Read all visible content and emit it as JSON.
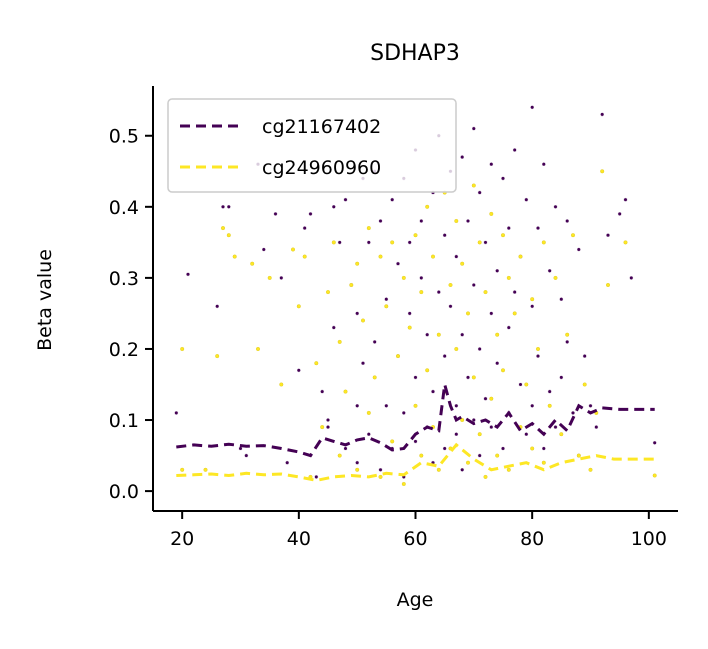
{
  "chart_data": {
    "type": "scatter",
    "title": "SDHAP3",
    "xlabel": "Age",
    "ylabel": "Beta value",
    "xlim": [
      15,
      105
    ],
    "ylim": [
      -0.028,
      0.57
    ],
    "xticks": [
      "20",
      "40",
      "60",
      "80",
      "100"
    ],
    "xtick_values": [
      20,
      40,
      60,
      80,
      100
    ],
    "yticks": [
      "0.0",
      "0.1",
      "0.2",
      "0.3",
      "0.4",
      "0.5"
    ],
    "ytick_values": [
      0.0,
      0.1,
      0.2,
      0.3,
      0.4,
      0.5
    ],
    "legend_position": "top-left",
    "grid": false,
    "series": [
      {
        "name": "cg21167402",
        "color": "#440154",
        "line_style": "dashed",
        "trend": {
          "x": [
            19,
            22,
            25,
            28,
            31,
            34,
            37,
            40,
            42,
            44,
            46,
            48,
            50,
            52,
            54,
            56,
            58,
            60,
            62,
            64,
            65,
            66,
            67,
            68,
            70,
            72,
            74,
            76,
            78,
            80,
            82,
            84,
            86,
            88,
            90,
            92,
            95,
            98,
            101
          ],
          "y": [
            0.062,
            0.065,
            0.063,
            0.066,
            0.063,
            0.064,
            0.06,
            0.055,
            0.05,
            0.075,
            0.07,
            0.065,
            0.072,
            0.075,
            0.068,
            0.058,
            0.06,
            0.08,
            0.09,
            0.085,
            0.15,
            0.12,
            0.1,
            0.105,
            0.095,
            0.1,
            0.09,
            0.11,
            0.085,
            0.095,
            0.08,
            0.1,
            0.085,
            0.12,
            0.11,
            0.117,
            0.115,
            0.115,
            0.115
          ]
        },
        "points": [
          [
            19,
            0.11
          ],
          [
            21,
            0.305
          ],
          [
            26,
            0.26
          ],
          [
            27,
            0.4
          ],
          [
            28,
            0.4
          ],
          [
            30,
            0.06
          ],
          [
            31,
            0.05
          ],
          [
            33,
            0.46
          ],
          [
            34,
            0.34
          ],
          [
            36,
            0.39
          ],
          [
            37,
            0.3
          ],
          [
            38,
            0.04
          ],
          [
            40,
            0.17
          ],
          [
            41,
            0.37
          ],
          [
            42,
            0.39
          ],
          [
            43,
            0.02
          ],
          [
            44,
            0.14
          ],
          [
            45,
            0.1
          ],
          [
            45,
            0.09
          ],
          [
            46,
            0.4
          ],
          [
            46,
            0.23
          ],
          [
            47,
            0.35
          ],
          [
            48,
            0.41
          ],
          [
            48,
            0.06
          ],
          [
            49,
            0.29
          ],
          [
            50,
            0.25
          ],
          [
            50,
            0.12
          ],
          [
            50,
            0.04
          ],
          [
            51,
            0.44
          ],
          [
            51,
            0.18
          ],
          [
            52,
            0.08
          ],
          [
            52,
            0.35
          ],
          [
            53,
            0.45
          ],
          [
            53,
            0.21
          ],
          [
            54,
            0.03
          ],
          [
            54,
            0.38
          ],
          [
            55,
            0.27
          ],
          [
            55,
            0.12
          ],
          [
            56,
            0.41
          ],
          [
            56,
            0.06
          ],
          [
            57,
            0.32
          ],
          [
            57,
            0.19
          ],
          [
            58,
            0.11
          ],
          [
            58,
            0.44
          ],
          [
            58,
            0.02
          ],
          [
            59,
            0.35
          ],
          [
            59,
            0.25
          ],
          [
            60,
            0.48
          ],
          [
            60,
            0.16
          ],
          [
            60,
            0.07
          ],
          [
            61,
            0.3
          ],
          [
            61,
            0.38
          ],
          [
            62,
            0.09
          ],
          [
            62,
            0.22
          ],
          [
            63,
            0.42
          ],
          [
            63,
            0.14
          ],
          [
            63,
            0.04
          ],
          [
            64,
            0.28
          ],
          [
            64,
            0.5
          ],
          [
            65,
            0.36
          ],
          [
            65,
            0.19
          ],
          [
            65,
            0.06
          ],
          [
            66,
            0.45
          ],
          [
            66,
            0.26
          ],
          [
            67,
            0.33
          ],
          [
            67,
            0.12
          ],
          [
            67,
            0.08
          ],
          [
            68,
            0.47
          ],
          [
            68,
            0.22
          ],
          [
            68,
            0.03
          ],
          [
            69,
            0.38
          ],
          [
            69,
            0.16
          ],
          [
            70,
            0.51
          ],
          [
            70,
            0.29
          ],
          [
            70,
            0.1
          ],
          [
            71,
            0.42
          ],
          [
            71,
            0.2
          ],
          [
            71,
            0.05
          ],
          [
            72,
            0.35
          ],
          [
            72,
            0.13
          ],
          [
            73,
            0.46
          ],
          [
            73,
            0.25
          ],
          [
            73,
            0.09
          ],
          [
            74,
            0.31
          ],
          [
            74,
            0.18
          ],
          [
            75,
            0.44
          ],
          [
            75,
            0.06
          ],
          [
            76,
            0.37
          ],
          [
            76,
            0.23
          ],
          [
            76,
            0.11
          ],
          [
            77,
            0.48
          ],
          [
            77,
            0.28
          ],
          [
            78,
            0.15
          ],
          [
            78,
            0.33
          ],
          [
            79,
            0.41
          ],
          [
            79,
            0.08
          ],
          [
            80,
            0.54
          ],
          [
            80,
            0.26
          ],
          [
            80,
            0.12
          ],
          [
            81,
            0.37
          ],
          [
            81,
            0.19
          ],
          [
            82,
            0.46
          ],
          [
            82,
            0.06
          ],
          [
            83,
            0.31
          ],
          [
            83,
            0.14
          ],
          [
            84,
            0.4
          ],
          [
            84,
            0.09
          ],
          [
            85,
            0.27
          ],
          [
            85,
            0.16
          ],
          [
            86,
            0.21
          ],
          [
            86,
            0.38
          ],
          [
            87,
            0.11
          ],
          [
            88,
            0.34
          ],
          [
            88,
            0.05
          ],
          [
            89,
            0.19
          ],
          [
            90,
            0.12
          ],
          [
            91,
            0.09
          ],
          [
            92,
            0.53
          ],
          [
            93,
            0.36
          ],
          [
            95,
            0.39
          ],
          [
            96,
            0.41
          ],
          [
            97,
            0.3
          ],
          [
            101,
            0.068
          ]
        ]
      },
      {
        "name": "cg24960960",
        "color": "#fde725",
        "line_style": "dashed",
        "trend": {
          "x": [
            19,
            22,
            25,
            28,
            31,
            34,
            37,
            40,
            43,
            46,
            49,
            52,
            55,
            58,
            61,
            64,
            67,
            70,
            73,
            76,
            79,
            82,
            85,
            88,
            91,
            94,
            97,
            101
          ],
          "y": [
            0.022,
            0.023,
            0.024,
            0.022,
            0.025,
            0.023,
            0.024,
            0.02,
            0.015,
            0.02,
            0.022,
            0.02,
            0.025,
            0.023,
            0.04,
            0.035,
            0.065,
            0.045,
            0.03,
            0.035,
            0.04,
            0.03,
            0.04,
            0.045,
            0.05,
            0.045,
            0.045,
            0.045
          ]
        },
        "points": [
          [
            20,
            0.2
          ],
          [
            20,
            0.03
          ],
          [
            24,
            0.03
          ],
          [
            26,
            0.19
          ],
          [
            27,
            0.37
          ],
          [
            28,
            0.36
          ],
          [
            29,
            0.33
          ],
          [
            32,
            0.32
          ],
          [
            33,
            0.2
          ],
          [
            35,
            0.3
          ],
          [
            37,
            0.15
          ],
          [
            39,
            0.34
          ],
          [
            40,
            0.26
          ],
          [
            41,
            0.33
          ],
          [
            42,
            0.02
          ],
          [
            43,
            0.18
          ],
          [
            44,
            0.09
          ],
          [
            45,
            0.28
          ],
          [
            46,
            0.35
          ],
          [
            47,
            0.05
          ],
          [
            47,
            0.21
          ],
          [
            48,
            0.14
          ],
          [
            49,
            0.29
          ],
          [
            50,
            0.32
          ],
          [
            50,
            0.03
          ],
          [
            51,
            0.24
          ],
          [
            52,
            0.37
          ],
          [
            52,
            0.11
          ],
          [
            53,
            0.16
          ],
          [
            54,
            0.33
          ],
          [
            54,
            0.02
          ],
          [
            55,
            0.26
          ],
          [
            56,
            0.35
          ],
          [
            56,
            0.07
          ],
          [
            57,
            0.19
          ],
          [
            58,
            0.3
          ],
          [
            58,
            0.01
          ],
          [
            59,
            0.23
          ],
          [
            60,
            0.36
          ],
          [
            60,
            0.12
          ],
          [
            61,
            0.05
          ],
          [
            61,
            0.28
          ],
          [
            62,
            0.17
          ],
          [
            62,
            0.4
          ],
          [
            63,
            0.09
          ],
          [
            63,
            0.33
          ],
          [
            64,
            0.22
          ],
          [
            64,
            0.03
          ],
          [
            65,
            0.42
          ],
          [
            65,
            0.14
          ],
          [
            66,
            0.29
          ],
          [
            66,
            0.06
          ],
          [
            67,
            0.38
          ],
          [
            67,
            0.2
          ],
          [
            68,
            0.1
          ],
          [
            68,
            0.32
          ],
          [
            69,
            0.25
          ],
          [
            69,
            0.04
          ],
          [
            70,
            0.43
          ],
          [
            70,
            0.16
          ],
          [
            71,
            0.35
          ],
          [
            71,
            0.08
          ],
          [
            72,
            0.28
          ],
          [
            72,
            0.02
          ],
          [
            73,
            0.39
          ],
          [
            73,
            0.13
          ],
          [
            74,
            0.22
          ],
          [
            74,
            0.05
          ],
          [
            75,
            0.36
          ],
          [
            75,
            0.17
          ],
          [
            76,
            0.3
          ],
          [
            76,
            0.03
          ],
          [
            77,
            0.25
          ],
          [
            78,
            0.09
          ],
          [
            78,
            0.33
          ],
          [
            79,
            0.15
          ],
          [
            80,
            0.06
          ],
          [
            80,
            0.27
          ],
          [
            81,
            0.2
          ],
          [
            82,
            0.35
          ],
          [
            82,
            0.04
          ],
          [
            83,
            0.12
          ],
          [
            84,
            0.3
          ],
          [
            85,
            0.08
          ],
          [
            86,
            0.22
          ],
          [
            87,
            0.36
          ],
          [
            88,
            0.05
          ],
          [
            89,
            0.15
          ],
          [
            90,
            0.03
          ],
          [
            91,
            0.11
          ],
          [
            92,
            0.45
          ],
          [
            93,
            0.29
          ],
          [
            96,
            0.35
          ],
          [
            101,
            0.022
          ]
        ]
      }
    ]
  }
}
